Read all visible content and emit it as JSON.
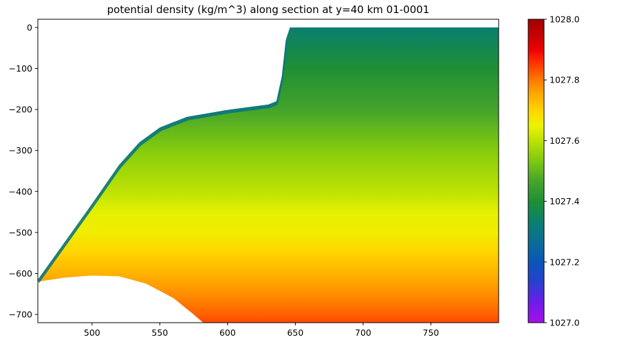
{
  "chart_data": {
    "type": "heatmap",
    "title": "potential density (kg/m^3) along section at y=40 km 01-0001",
    "xlabel": "",
    "ylabel": "",
    "xlim": [
      460,
      800
    ],
    "ylim": [
      -720,
      20
    ],
    "x_ticks": [
      500,
      550,
      600,
      650,
      700,
      750
    ],
    "y_ticks": [
      0,
      -100,
      -200,
      -300,
      -400,
      -500,
      -600,
      -700
    ],
    "colorbar": {
      "range": [
        1027.0,
        1028.0
      ],
      "ticks": [
        "1027.0",
        "1027.2",
        "1027.4",
        "1027.6",
        "1027.8",
        "1028.0"
      ],
      "colormap": "nipy_spectral-like"
    },
    "surface_profile": [
      {
        "x": 460,
        "y": -615
      },
      {
        "x": 500,
        "y": -430
      },
      {
        "x": 520,
        "y": -335
      },
      {
        "x": 535,
        "y": -280
      },
      {
        "x": 550,
        "y": -244
      },
      {
        "x": 570,
        "y": -218
      },
      {
        "x": 600,
        "y": -201
      },
      {
        "x": 630,
        "y": -188
      },
      {
        "x": 636,
        "y": -180
      },
      {
        "x": 640,
        "y": -120
      },
      {
        "x": 643,
        "y": -30
      },
      {
        "x": 646,
        "y": 0
      },
      {
        "x": 800,
        "y": 0
      }
    ],
    "bottom_profile": [
      {
        "x": 460,
        "y": -620
      },
      {
        "x": 480,
        "y": -610
      },
      {
        "x": 500,
        "y": -605
      },
      {
        "x": 520,
        "y": -607
      },
      {
        "x": 540,
        "y": -625
      },
      {
        "x": 560,
        "y": -660
      },
      {
        "x": 575,
        "y": -700
      },
      {
        "x": 582,
        "y": -720
      }
    ],
    "density_vs_depth": [
      {
        "depth": 0,
        "density": 1027.33
      },
      {
        "depth": -100,
        "density": 1027.4
      },
      {
        "depth": -200,
        "density": 1027.46
      },
      {
        "depth": -300,
        "density": 1027.54
      },
      {
        "depth": -400,
        "density": 1027.6
      },
      {
        "depth": -450,
        "density": 1027.64
      },
      {
        "depth": -500,
        "density": 1027.66
      },
      {
        "depth": -550,
        "density": 1027.7
      },
      {
        "depth": -600,
        "density": 1027.74
      },
      {
        "depth": -650,
        "density": 1027.78
      },
      {
        "depth": -700,
        "density": 1027.82
      },
      {
        "depth": -720,
        "density": 1027.84
      }
    ],
    "surface_layer_density": 1027.3,
    "colormap_stops": [
      {
        "v": 1027.0,
        "color": "#a30fe8"
      },
      {
        "v": 1027.07,
        "color": "#6a1de8"
      },
      {
        "v": 1027.13,
        "color": "#2a3fd0"
      },
      {
        "v": 1027.2,
        "color": "#0b55b8"
      },
      {
        "v": 1027.27,
        "color": "#0a6f96"
      },
      {
        "v": 1027.33,
        "color": "#0a7f70"
      },
      {
        "v": 1027.4,
        "color": "#1f8f34"
      },
      {
        "v": 1027.47,
        "color": "#4aa62a"
      },
      {
        "v": 1027.53,
        "color": "#7cc810"
      },
      {
        "v": 1027.6,
        "color": "#bde203"
      },
      {
        "v": 1027.65,
        "color": "#eef300"
      },
      {
        "v": 1027.7,
        "color": "#ffd400"
      },
      {
        "v": 1027.75,
        "color": "#ffab00"
      },
      {
        "v": 1027.8,
        "color": "#ff7a00"
      },
      {
        "v": 1027.85,
        "color": "#ff3a00"
      },
      {
        "v": 1027.9,
        "color": "#ee0000"
      },
      {
        "v": 1027.95,
        "color": "#c40000"
      },
      {
        "v": 1028.0,
        "color": "#a00000"
      }
    ]
  }
}
